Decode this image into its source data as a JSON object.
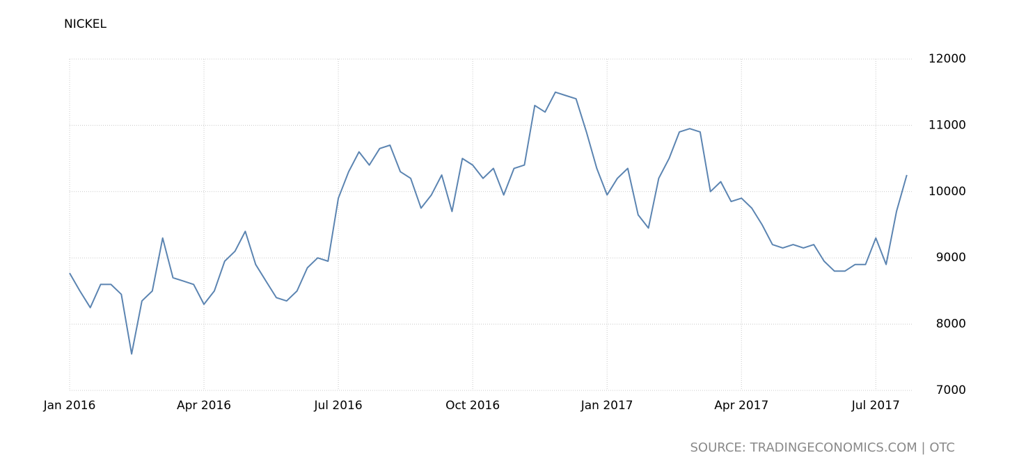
{
  "chart_data": {
    "type": "line",
    "title": "NICKEL",
    "source": "SOURCE: TRADINGECONOMICS.COM | OTC",
    "categories": [
      "Jan 2016",
      null,
      null,
      null,
      null,
      null,
      null,
      null,
      null,
      null,
      null,
      null,
      null,
      "Apr 2016",
      null,
      null,
      null,
      null,
      null,
      null,
      null,
      null,
      null,
      null,
      null,
      null,
      "Jul 2016",
      null,
      null,
      null,
      null,
      null,
      null,
      null,
      null,
      null,
      null,
      null,
      null,
      "Oct 2016",
      null,
      null,
      null,
      null,
      null,
      null,
      null,
      null,
      null,
      null,
      null,
      null,
      "Jan 2017",
      null,
      null,
      null,
      null,
      null,
      null,
      null,
      null,
      null,
      null,
      null,
      null,
      "Apr 2017",
      null,
      null,
      null,
      null,
      null,
      null,
      null,
      null,
      null,
      null,
      null,
      null,
      "Jul 2017",
      null,
      null,
      null
    ],
    "series": [
      {
        "name": "Nickel",
        "color": "#5b84b1",
        "values": [
          8770,
          8500,
          8250,
          8600,
          8600,
          8450,
          7550,
          8350,
          8500,
          9300,
          8700,
          8650,
          8600,
          8300,
          8500,
          8950,
          9100,
          9400,
          8900,
          8650,
          8400,
          8350,
          8500,
          8850,
          9000,
          8950,
          9900,
          10300,
          10600,
          10400,
          10650,
          10700,
          10300,
          10200,
          9750,
          9950,
          10250,
          9700,
          10500,
          10400,
          10200,
          10350,
          9950,
          10350,
          10400,
          11300,
          11200,
          11500,
          11450,
          11400,
          10900,
          10350,
          9950,
          10200,
          10350,
          9650,
          9450,
          10200,
          10500,
          10900,
          10950,
          10900,
          10000,
          10150,
          9850,
          9900,
          9750,
          9500,
          9200,
          9150,
          9200,
          9150,
          9200,
          8950,
          8800,
          8800,
          8900,
          8900,
          9300,
          8900,
          9700,
          10250
        ]
      }
    ],
    "ylim": [
      7000,
      12000
    ],
    "yticks": [
      7000,
      8000,
      9000,
      10000,
      11000,
      12000
    ],
    "grid": true
  }
}
